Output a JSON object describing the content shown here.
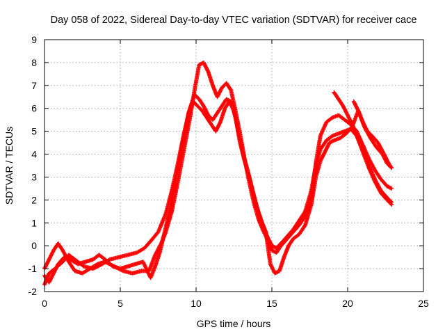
{
  "chart_data": {
    "type": "scatter",
    "title": "Day 058 of 2022, Sidereal Day-to-day VTEC variation (SDTVAR) for receiver cace",
    "xlabel": "GPS time / hours",
    "ylabel": "SDTVAR / TECUs",
    "xlim": [
      0,
      25
    ],
    "ylim": [
      -2,
      9
    ],
    "xticks": [
      0,
      5,
      10,
      15,
      20,
      25
    ],
    "yticks": [
      -2,
      -1,
      0,
      1,
      2,
      3,
      4,
      5,
      6,
      7,
      8,
      9
    ],
    "grid": true,
    "marker": "+",
    "color": "#ff0000",
    "series": [
      {
        "points": [
          [
            0,
            -1.7
          ],
          [
            0.3,
            -1.2
          ],
          [
            0.7,
            -1.0
          ],
          [
            1.2,
            -0.7
          ],
          [
            1.6,
            -0.4
          ],
          [
            2.0,
            -0.6
          ],
          [
            2.6,
            -0.9
          ],
          [
            3.2,
            -1.0
          ],
          [
            3.8,
            -0.8
          ],
          [
            4.3,
            -0.6
          ],
          [
            4.9,
            -0.5
          ],
          [
            5.5,
            -0.4
          ],
          [
            6.1,
            -0.3
          ],
          [
            6.6,
            -0.1
          ],
          [
            7.0,
            0.2
          ],
          [
            7.5,
            0.6
          ],
          [
            8.0,
            1.4
          ],
          [
            8.4,
            2.4
          ],
          [
            8.8,
            3.6
          ],
          [
            9.2,
            4.9
          ],
          [
            9.6,
            6.0
          ],
          [
            9.9,
            6.6
          ],
          [
            10.2,
            6.4
          ],
          [
            10.5,
            6.1
          ],
          [
            10.8,
            5.7
          ],
          [
            11.1,
            5.5
          ],
          [
            11.4,
            5.8
          ],
          [
            11.7,
            6.1
          ],
          [
            12.0,
            6.4
          ],
          [
            12.3,
            6.3
          ],
          [
            12.6,
            5.6
          ],
          [
            12.9,
            4.5
          ],
          [
            13.2,
            3.7
          ],
          [
            13.5,
            3.0
          ],
          [
            13.8,
            2.2
          ],
          [
            14.1,
            1.5
          ],
          [
            14.4,
            0.9
          ],
          [
            14.7,
            0.4
          ],
          [
            15.0,
            0.0
          ],
          [
            15.3,
            -0.1
          ],
          [
            15.6,
            0.1
          ],
          [
            16.0,
            0.4
          ],
          [
            16.4,
            0.7
          ],
          [
            16.8,
            1.1
          ],
          [
            17.2,
            1.5
          ],
          [
            17.6,
            2.4
          ],
          [
            17.9,
            3.5
          ],
          [
            18.2,
            4.2
          ],
          [
            18.6,
            4.6
          ],
          [
            19.0,
            4.8
          ],
          [
            19.4,
            4.9
          ],
          [
            19.8,
            5.0
          ],
          [
            20.2,
            5.1
          ],
          [
            20.6,
            4.8
          ],
          [
            21.0,
            4.1
          ],
          [
            21.4,
            3.4
          ],
          [
            21.8,
            2.8
          ],
          [
            22.2,
            2.3
          ],
          [
            22.6,
            2.0
          ],
          [
            22.9,
            1.8
          ]
        ]
      },
      {
        "points": [
          [
            0,
            -1.0
          ],
          [
            0.3,
            -0.6
          ],
          [
            0.6,
            -0.2
          ],
          [
            0.9,
            0.1
          ],
          [
            1.2,
            -0.2
          ],
          [
            1.6,
            -0.7
          ],
          [
            2.0,
            -1.1
          ],
          [
            2.5,
            -1.2
          ],
          [
            3.0,
            -1.0
          ],
          [
            3.5,
            -0.8
          ],
          [
            4.0,
            -0.7
          ],
          [
            4.6,
            -0.9
          ],
          [
            5.2,
            -1.1
          ],
          [
            5.8,
            -1.2
          ],
          [
            6.4,
            -1.1
          ],
          [
            6.9,
            -1.1
          ],
          [
            7.3,
            -0.4
          ],
          [
            7.7,
            0.1
          ],
          [
            8.0,
            0.6
          ],
          [
            8.4,
            1.5
          ],
          [
            8.8,
            2.8
          ],
          [
            9.2,
            4.2
          ],
          [
            9.6,
            5.6
          ],
          [
            9.9,
            6.8
          ],
          [
            10.2,
            7.9
          ],
          [
            10.5,
            8.0
          ],
          [
            10.8,
            7.6
          ],
          [
            11.1,
            7.0
          ],
          [
            11.4,
            6.5
          ],
          [
            11.7,
            6.9
          ],
          [
            12.0,
            7.1
          ],
          [
            12.3,
            6.8
          ],
          [
            12.6,
            5.9
          ],
          [
            12.9,
            4.9
          ],
          [
            13.2,
            3.8
          ],
          [
            13.5,
            2.8
          ],
          [
            13.8,
            1.9
          ],
          [
            14.1,
            1.2
          ],
          [
            14.4,
            0.7
          ],
          [
            14.7,
            0.3
          ],
          [
            15.0,
            -0.2
          ],
          [
            15.3,
            -0.3
          ],
          [
            15.6,
            0.0
          ],
          [
            16.0,
            0.3
          ],
          [
            16.4,
            0.6
          ],
          [
            16.8,
            0.9
          ],
          [
            17.2,
            1.3
          ],
          [
            17.6,
            2.0
          ],
          [
            17.9,
            3.6
          ],
          [
            18.2,
            4.8
          ],
          [
            18.6,
            5.4
          ],
          [
            19.0,
            5.6
          ],
          [
            19.4,
            5.7
          ],
          [
            19.8,
            5.5
          ],
          [
            20.2,
            5.3
          ],
          [
            20.6,
            5.0
          ],
          [
            21.0,
            4.4
          ],
          [
            21.4,
            3.8
          ],
          [
            21.8,
            3.3
          ],
          [
            22.2,
            2.9
          ],
          [
            22.6,
            2.6
          ],
          [
            22.9,
            2.5
          ]
        ]
      },
      {
        "points": [
          [
            0,
            -1.3
          ],
          [
            0.3,
            -1.6
          ],
          [
            0.6,
            -1.2
          ],
          [
            0.9,
            -0.8
          ],
          [
            1.3,
            -0.5
          ],
          [
            1.7,
            -0.6
          ],
          [
            2.2,
            -0.8
          ],
          [
            2.7,
            -0.7
          ],
          [
            3.2,
            -0.6
          ],
          [
            3.6,
            -0.4
          ],
          [
            4.0,
            -0.6
          ],
          [
            4.5,
            -0.9
          ],
          [
            5.0,
            -1.0
          ],
          [
            5.5,
            -0.9
          ],
          [
            6.0,
            -0.8
          ],
          [
            6.5,
            -0.7
          ],
          [
            7.0,
            -1.4
          ],
          [
            7.3,
            -0.9
          ],
          [
            7.6,
            -0.3
          ],
          [
            8.0,
            0.8
          ],
          [
            8.4,
            2.0
          ],
          [
            8.8,
            3.4
          ],
          [
            9.2,
            4.8
          ],
          [
            9.5,
            5.8
          ],
          [
            9.8,
            6.3
          ],
          [
            10.1,
            6.1
          ],
          [
            10.4,
            5.9
          ],
          [
            10.7,
            5.6
          ],
          [
            11.0,
            5.3
          ],
          [
            11.3,
            5.0
          ],
          [
            11.6,
            5.4
          ],
          [
            11.9,
            6.0
          ],
          [
            12.2,
            6.3
          ],
          [
            12.5,
            5.9
          ],
          [
            12.8,
            5.0
          ],
          [
            13.1,
            4.0
          ],
          [
            13.4,
            3.3
          ],
          [
            13.7,
            2.5
          ],
          [
            14.0,
            1.7
          ],
          [
            14.3,
            1.1
          ],
          [
            14.6,
            0.6
          ],
          [
            14.9,
            -0.8
          ],
          [
            15.2,
            -1.2
          ],
          [
            15.5,
            -1.1
          ],
          [
            15.8,
            -0.5
          ],
          [
            16.1,
            0.0
          ],
          [
            16.4,
            0.3
          ],
          [
            16.8,
            0.5
          ],
          [
            17.2,
            0.9
          ],
          [
            17.6,
            1.8
          ],
          [
            17.9,
            3.0
          ],
          [
            18.2,
            3.7
          ],
          [
            18.5,
            4.1
          ],
          [
            18.8,
            4.5
          ],
          [
            19.1,
            4.6
          ],
          [
            19.5,
            4.7
          ],
          [
            19.9,
            4.9
          ],
          [
            20.3,
            5.2
          ],
          [
            20.7,
            5.9
          ],
          [
            21.1,
            5.2
          ],
          [
            21.5,
            4.7
          ],
          [
            21.9,
            4.3
          ],
          [
            22.3,
            4.0
          ],
          [
            22.6,
            3.6
          ],
          [
            22.9,
            3.4
          ]
        ]
      },
      {
        "points": [
          [
            19.1,
            6.7
          ],
          [
            19.4,
            6.4
          ],
          [
            19.7,
            6.1
          ],
          [
            20.0,
            5.7
          ],
          [
            20.3,
            5.3
          ],
          [
            20.6,
            4.8
          ],
          [
            21.0,
            4.2
          ],
          [
            21.4,
            3.5
          ],
          [
            21.8,
            2.9
          ],
          [
            22.2,
            2.4
          ],
          [
            22.6,
            2.1
          ],
          [
            22.9,
            1.9
          ]
        ]
      },
      {
        "points": [
          [
            20.4,
            6.3
          ],
          [
            20.7,
            5.9
          ],
          [
            21.0,
            5.4
          ],
          [
            21.3,
            5.0
          ],
          [
            21.6,
            4.8
          ],
          [
            22.0,
            4.5
          ],
          [
            22.4,
            4.0
          ],
          [
            22.7,
            3.6
          ],
          [
            22.9,
            3.4
          ]
        ]
      }
    ]
  }
}
